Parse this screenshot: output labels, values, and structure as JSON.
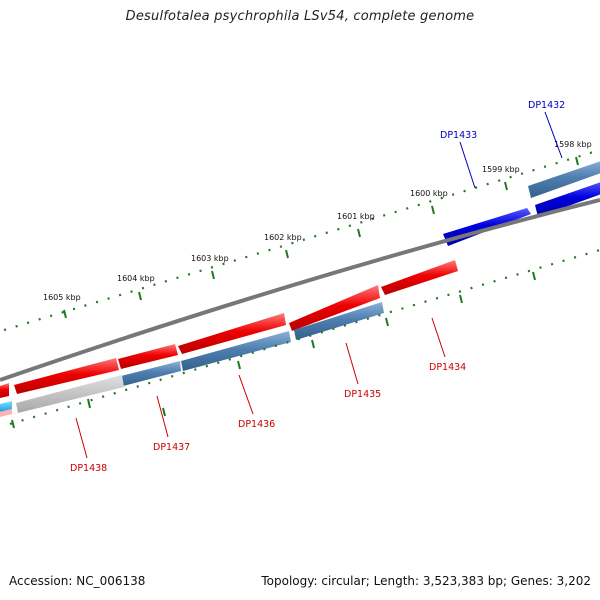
{
  "title": "Desulfotalea psychrophila LSv54, complete genome",
  "footer": {
    "accession": "Accession: NC_006138",
    "topology": "Topology: circular; Length: 3,523,383 bp; Genes: 3,202"
  },
  "kbp_labels": [
    "1605 kbp",
    "1604 kbp",
    "1603 kbp",
    "1602 kbp",
    "1601 kbp",
    "1600 kbp",
    "1599 kbp",
    "1598 kbp"
  ],
  "gene_labels": {
    "dp1432": "DP1432",
    "dp1433": "DP1433",
    "dp1434": "DP1434",
    "dp1435": "DP1435",
    "dp1436": "DP1436",
    "dp1437": "DP1437",
    "dp1438": "DP1438"
  },
  "colors": {
    "forward_gene": "#0000dd",
    "reverse_gene": "#ee0000",
    "rna_gene": "#5585b5",
    "backbone": "#777777",
    "tick": "#1f7a1f",
    "forward_label": "#0000bb",
    "reverse_label": "#cc0000"
  }
}
